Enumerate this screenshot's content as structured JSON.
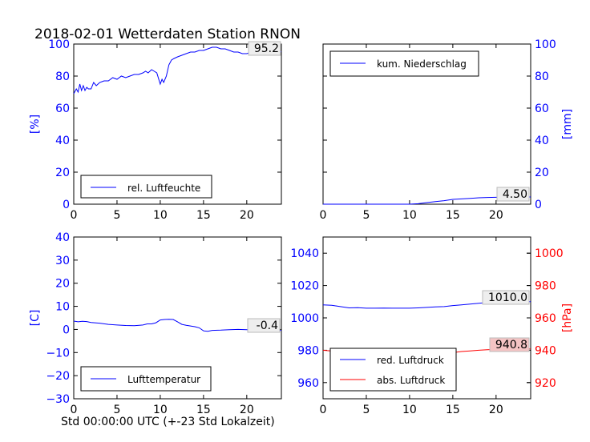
{
  "title": "2018-02-01 Wetterdaten Station RNON",
  "xlabel": "Std 00:00:00 UTC (+-23 Std Lokalzeit)",
  "x_ticks": [
    "0",
    "5",
    "10",
    "15",
    "20"
  ],
  "colors": {
    "blue": "#0000ff",
    "red": "#ff0000",
    "black": "#000000"
  },
  "chart_data": [
    {
      "type": "line",
      "ylabel": "[%]",
      "ylabel_side": "left",
      "xlim": [
        0,
        24
      ],
      "ylim": [
        0,
        100
      ],
      "y_ticks": [
        "0",
        "20",
        "40",
        "60",
        "80",
        "100"
      ],
      "legend_placement": "lower-left",
      "value_box": "95.2",
      "series": [
        {
          "name": "rel. Luftfeuchte",
          "color": "#0000ff",
          "x": [
            0,
            0.3,
            0.5,
            0.7,
            0.9,
            1.1,
            1.3,
            1.5,
            1.7,
            2,
            2.3,
            2.6,
            3,
            3.5,
            4,
            4.5,
            5,
            5.5,
            6,
            6.5,
            7,
            7.5,
            8,
            8.3,
            8.6,
            9,
            9.3,
            9.6,
            10,
            10.2,
            10.4,
            10.7,
            11,
            11.3,
            11.6,
            12,
            12.5,
            13,
            13.5,
            14,
            14.5,
            15,
            15.5,
            16,
            16.5,
            17,
            17.5,
            18,
            18.5,
            19,
            19.5,
            20,
            20.5,
            21,
            21.5,
            22,
            22.5,
            23,
            23.5,
            24
          ],
          "y": [
            69,
            72,
            70,
            75,
            71,
            74,
            71,
            73,
            72,
            72,
            76,
            74,
            76,
            77,
            77,
            79,
            78,
            80,
            79,
            80,
            81,
            81,
            82,
            83,
            82,
            84,
            83,
            82,
            75,
            78,
            76,
            80,
            87,
            90,
            91,
            92,
            93,
            94,
            95,
            95,
            96,
            96,
            97,
            98,
            98,
            97,
            97,
            96,
            95,
            95,
            94,
            94,
            95,
            94,
            95,
            95,
            95,
            95,
            95,
            95.2
          ]
        }
      ]
    },
    {
      "type": "line",
      "ylabel": "[mm]",
      "ylabel_side": "right",
      "xlim": [
        0,
        24
      ],
      "ylim": [
        0,
        100
      ],
      "y_ticks": [
        "0",
        "20",
        "40",
        "60",
        "80",
        "100"
      ],
      "legend_placement": "upper-left",
      "value_box": "4.50",
      "series": [
        {
          "name": "kum. Niederschlag",
          "color": "#0000ff",
          "x": [
            0,
            5,
            10,
            11,
            12,
            13,
            14,
            15,
            16,
            17,
            18,
            19,
            20,
            21,
            22,
            23,
            24
          ],
          "y": [
            0,
            0,
            0,
            0.3,
            1,
            1.6,
            2.2,
            3,
            3.3,
            3.6,
            4,
            4.2,
            4.3,
            4.4,
            4.45,
            4.5,
            4.5
          ]
        }
      ]
    },
    {
      "type": "line",
      "ylabel": "[C]",
      "ylabel_side": "left",
      "xlim": [
        0,
        24
      ],
      "ylim": [
        -30,
        40
      ],
      "y_ticks": [
        "−30",
        "−20",
        "−10",
        "0",
        "10",
        "20",
        "30",
        "40"
      ],
      "legend_placement": "lower-left",
      "value_box": "-0.4",
      "series": [
        {
          "name": "Lufttemperatur",
          "color": "#0000ff",
          "x": [
            0,
            0.5,
            1,
            1.5,
            2,
            3,
            4,
            5,
            6,
            7,
            8,
            8.5,
            9,
            9.5,
            10,
            10.5,
            11,
            11.5,
            12,
            12.5,
            13,
            13.5,
            14,
            14.5,
            15,
            15.5,
            16,
            17,
            18,
            19,
            20,
            21,
            22,
            23,
            24
          ],
          "y": [
            3.6,
            3.3,
            3.5,
            3.4,
            3,
            2.7,
            2.2,
            1.9,
            1.7,
            1.6,
            1.9,
            2.4,
            2.4,
            2.9,
            4.1,
            4.3,
            4.4,
            4.3,
            3.3,
            2.2,
            1.8,
            1.5,
            1.2,
            0.7,
            -0.6,
            -0.8,
            -0.4,
            -0.3,
            -0.1,
            0,
            -0.1,
            -0.3,
            -0.4,
            -0.4,
            -0.4
          ]
        }
      ]
    },
    {
      "type": "line",
      "ylabel": "[hPa]",
      "ylabel_side": "right",
      "xlim": [
        0,
        24
      ],
      "ylim": [
        950,
        1050
      ],
      "y_ticks": [
        "960",
        "980",
        "1000",
        "1020",
        "1040"
      ],
      "ylim_right": [
        910,
        1010
      ],
      "y_ticks_right": [
        "920",
        "940",
        "960",
        "980",
        "1000"
      ],
      "legend_placement": "lower-left",
      "value_boxes": [
        "1010.0",
        "940.8"
      ],
      "series": [
        {
          "name": "red. Luftdruck",
          "color": "#0000ff",
          "axis": "left",
          "x": [
            0,
            1,
            2,
            3,
            4,
            5,
            6,
            7,
            8,
            9,
            10,
            11,
            12,
            13,
            14,
            15,
            16,
            17,
            18,
            19,
            20,
            21,
            22,
            23,
            24
          ],
          "y": [
            1008,
            1007.8,
            1007,
            1006.2,
            1006.3,
            1006,
            1006,
            1006.1,
            1006,
            1006,
            1006,
            1006.2,
            1006.5,
            1006.8,
            1007,
            1007.6,
            1008,
            1008.5,
            1009,
            1009.5,
            1009.8,
            1010,
            1010,
            1010,
            1010
          ]
        },
        {
          "name": "abs. Luftdruck",
          "color": "#ff0000",
          "axis": "right",
          "x": [
            0,
            1,
            2,
            3,
            4,
            5,
            6,
            7,
            8,
            9,
            10,
            11,
            12,
            13,
            14,
            15,
            16,
            17,
            18,
            19,
            20,
            21,
            22,
            23,
            24
          ],
          "y": [
            940,
            939.5,
            938.5,
            937.8,
            937.8,
            937.5,
            937.3,
            937.3,
            937.5,
            937.3,
            937.5,
            937.8,
            938,
            938,
            938.2,
            938.5,
            939.2,
            939.6,
            940,
            940.3,
            940.5,
            940.7,
            940.8,
            940.8,
            940.8
          ]
        }
      ]
    }
  ]
}
